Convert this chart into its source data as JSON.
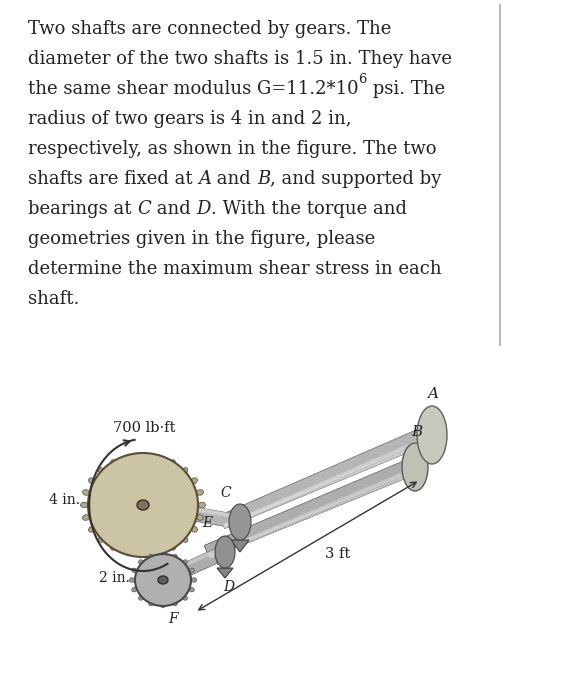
{
  "bg_color": "#ffffff",
  "text_color": "#222222",
  "lines": [
    [
      [
        "Two shafts are connected by gears. The",
        false,
        false
      ]
    ],
    [
      [
        "diameter of the two shafts is 1.5 in. They have",
        false,
        false
      ]
    ],
    [
      [
        "the same shear modulus G=11.2*10",
        false,
        false
      ],
      [
        "6",
        false,
        true
      ],
      [
        " psi. The",
        false,
        false
      ]
    ],
    [
      [
        "radius of two gears is 4 in and 2 in,",
        false,
        false
      ]
    ],
    [
      [
        "respectively, as shown in the figure. The two",
        false,
        false
      ]
    ],
    [
      [
        "shafts are fixed at ",
        false,
        false
      ],
      [
        "A",
        true,
        false
      ],
      [
        " and ",
        false,
        false
      ],
      [
        "B",
        true,
        false
      ],
      [
        ", and supported by",
        false,
        false
      ]
    ],
    [
      [
        "bearings at ",
        false,
        false
      ],
      [
        "C",
        true,
        false
      ],
      [
        " and ",
        false,
        false
      ],
      [
        "D",
        true,
        false
      ],
      [
        ". With the torque and",
        false,
        false
      ]
    ],
    [
      [
        "geometries given in the figure, please",
        false,
        false
      ]
    ],
    [
      [
        "determine the maximum shear stress in each",
        false,
        false
      ]
    ],
    [
      [
        "shaft.",
        false,
        false
      ]
    ]
  ],
  "label_700": "700 lb·ft",
  "label_4in": "4 in.",
  "label_2in": "2 in.",
  "label_3ft": "3 ft",
  "label_A": "A",
  "label_B": "B",
  "label_C": "C",
  "label_D": "D",
  "label_E": "E",
  "label_F": "F",
  "text_fontsize": 13.0,
  "label_fontsize": 10.5,
  "divider_color": "#aaaaaa"
}
